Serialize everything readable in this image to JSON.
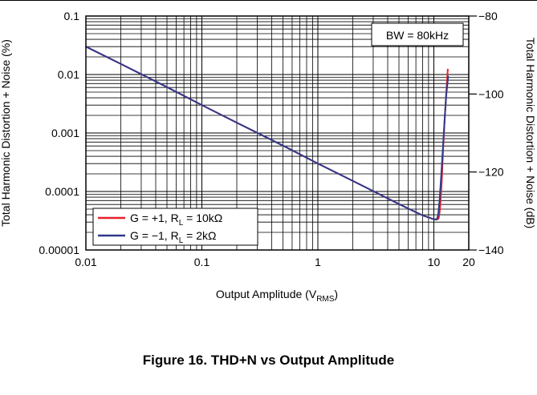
{
  "caption": "Figure 16. THD+N vs Output Amplitude",
  "chart_data": {
    "type": "line",
    "xlabel": "Output Amplitude (V",
    "xlabel_sub": "RMS",
    "xlabel_end": ")",
    "ylabel_left": "Total Harmonic Distortion + Noise (%)",
    "ylabel_right": "Total Harmonic Distortion + Noise (dB)",
    "x_scale": "log",
    "y_scale": "log",
    "xlim": [
      0.01,
      20
    ],
    "ylim_left": [
      1e-05,
      0.1
    ],
    "ylim_right": [
      -140,
      -80
    ],
    "x_ticks": [
      {
        "v": 0.01,
        "label": "0.01"
      },
      {
        "v": 0.1,
        "label": "0.1"
      },
      {
        "v": 1,
        "label": "1"
      },
      {
        "v": 10,
        "label": "10"
      },
      {
        "v": 20,
        "label": "20"
      }
    ],
    "y_ticks_left": [
      {
        "v": 0.1,
        "label": "0.1"
      },
      {
        "v": 0.01,
        "label": "0.01"
      },
      {
        "v": 0.001,
        "label": "0.001"
      },
      {
        "v": 0.0001,
        "label": "0.0001"
      },
      {
        "v": 1e-05,
        "label": "0.00001"
      }
    ],
    "y_ticks_right": [
      {
        "v": -80,
        "label": "−80"
      },
      {
        "v": -100,
        "label": "−100"
      },
      {
        "v": -120,
        "label": "−120"
      },
      {
        "v": -140,
        "label": "−140"
      }
    ],
    "grid": true,
    "annotation": "BW = 80kHz",
    "legend_position": "bottom-left",
    "series": [
      {
        "name_main": "G = +1, R",
        "name_sub": "L",
        "name_end": " = 10kΩ",
        "color": "#e8202a",
        "x": [
          0.01,
          0.02,
          0.05,
          0.1,
          0.2,
          0.5,
          1,
          2,
          5,
          8,
          10,
          10.7,
          11.0,
          11.3,
          11.7,
          12.0,
          12.4,
          12.8,
          13.2
        ],
        "y": [
          0.03,
          0.0152,
          0.0061,
          0.003,
          0.0015,
          0.00061,
          0.0003,
          0.000152,
          6.1e-05,
          3.9e-05,
          3.35e-05,
          3.35e-05,
          3.45e-05,
          5e-05,
          0.00015,
          0.0005,
          0.0017,
          0.005,
          0.0125
        ]
      },
      {
        "name_main": "G = −1, R",
        "name_sub": "L",
        "name_end": " = 2kΩ",
        "color": "#2e3a8c",
        "x": [
          0.01,
          0.02,
          0.05,
          0.1,
          0.2,
          0.5,
          1,
          2,
          5,
          8,
          10,
          10.6,
          10.9,
          11.2,
          11.6,
          12.0,
          12.4,
          12.8,
          13.3
        ],
        "y": [
          0.03,
          0.0152,
          0.0061,
          0.003,
          0.0015,
          0.00061,
          0.0003,
          0.000152,
          6.1e-05,
          3.9e-05,
          3.35e-05,
          3.3e-05,
          4e-05,
          7e-05,
          0.0002,
          0.0006,
          0.0018,
          0.0045,
          0.0095
        ]
      }
    ]
  }
}
